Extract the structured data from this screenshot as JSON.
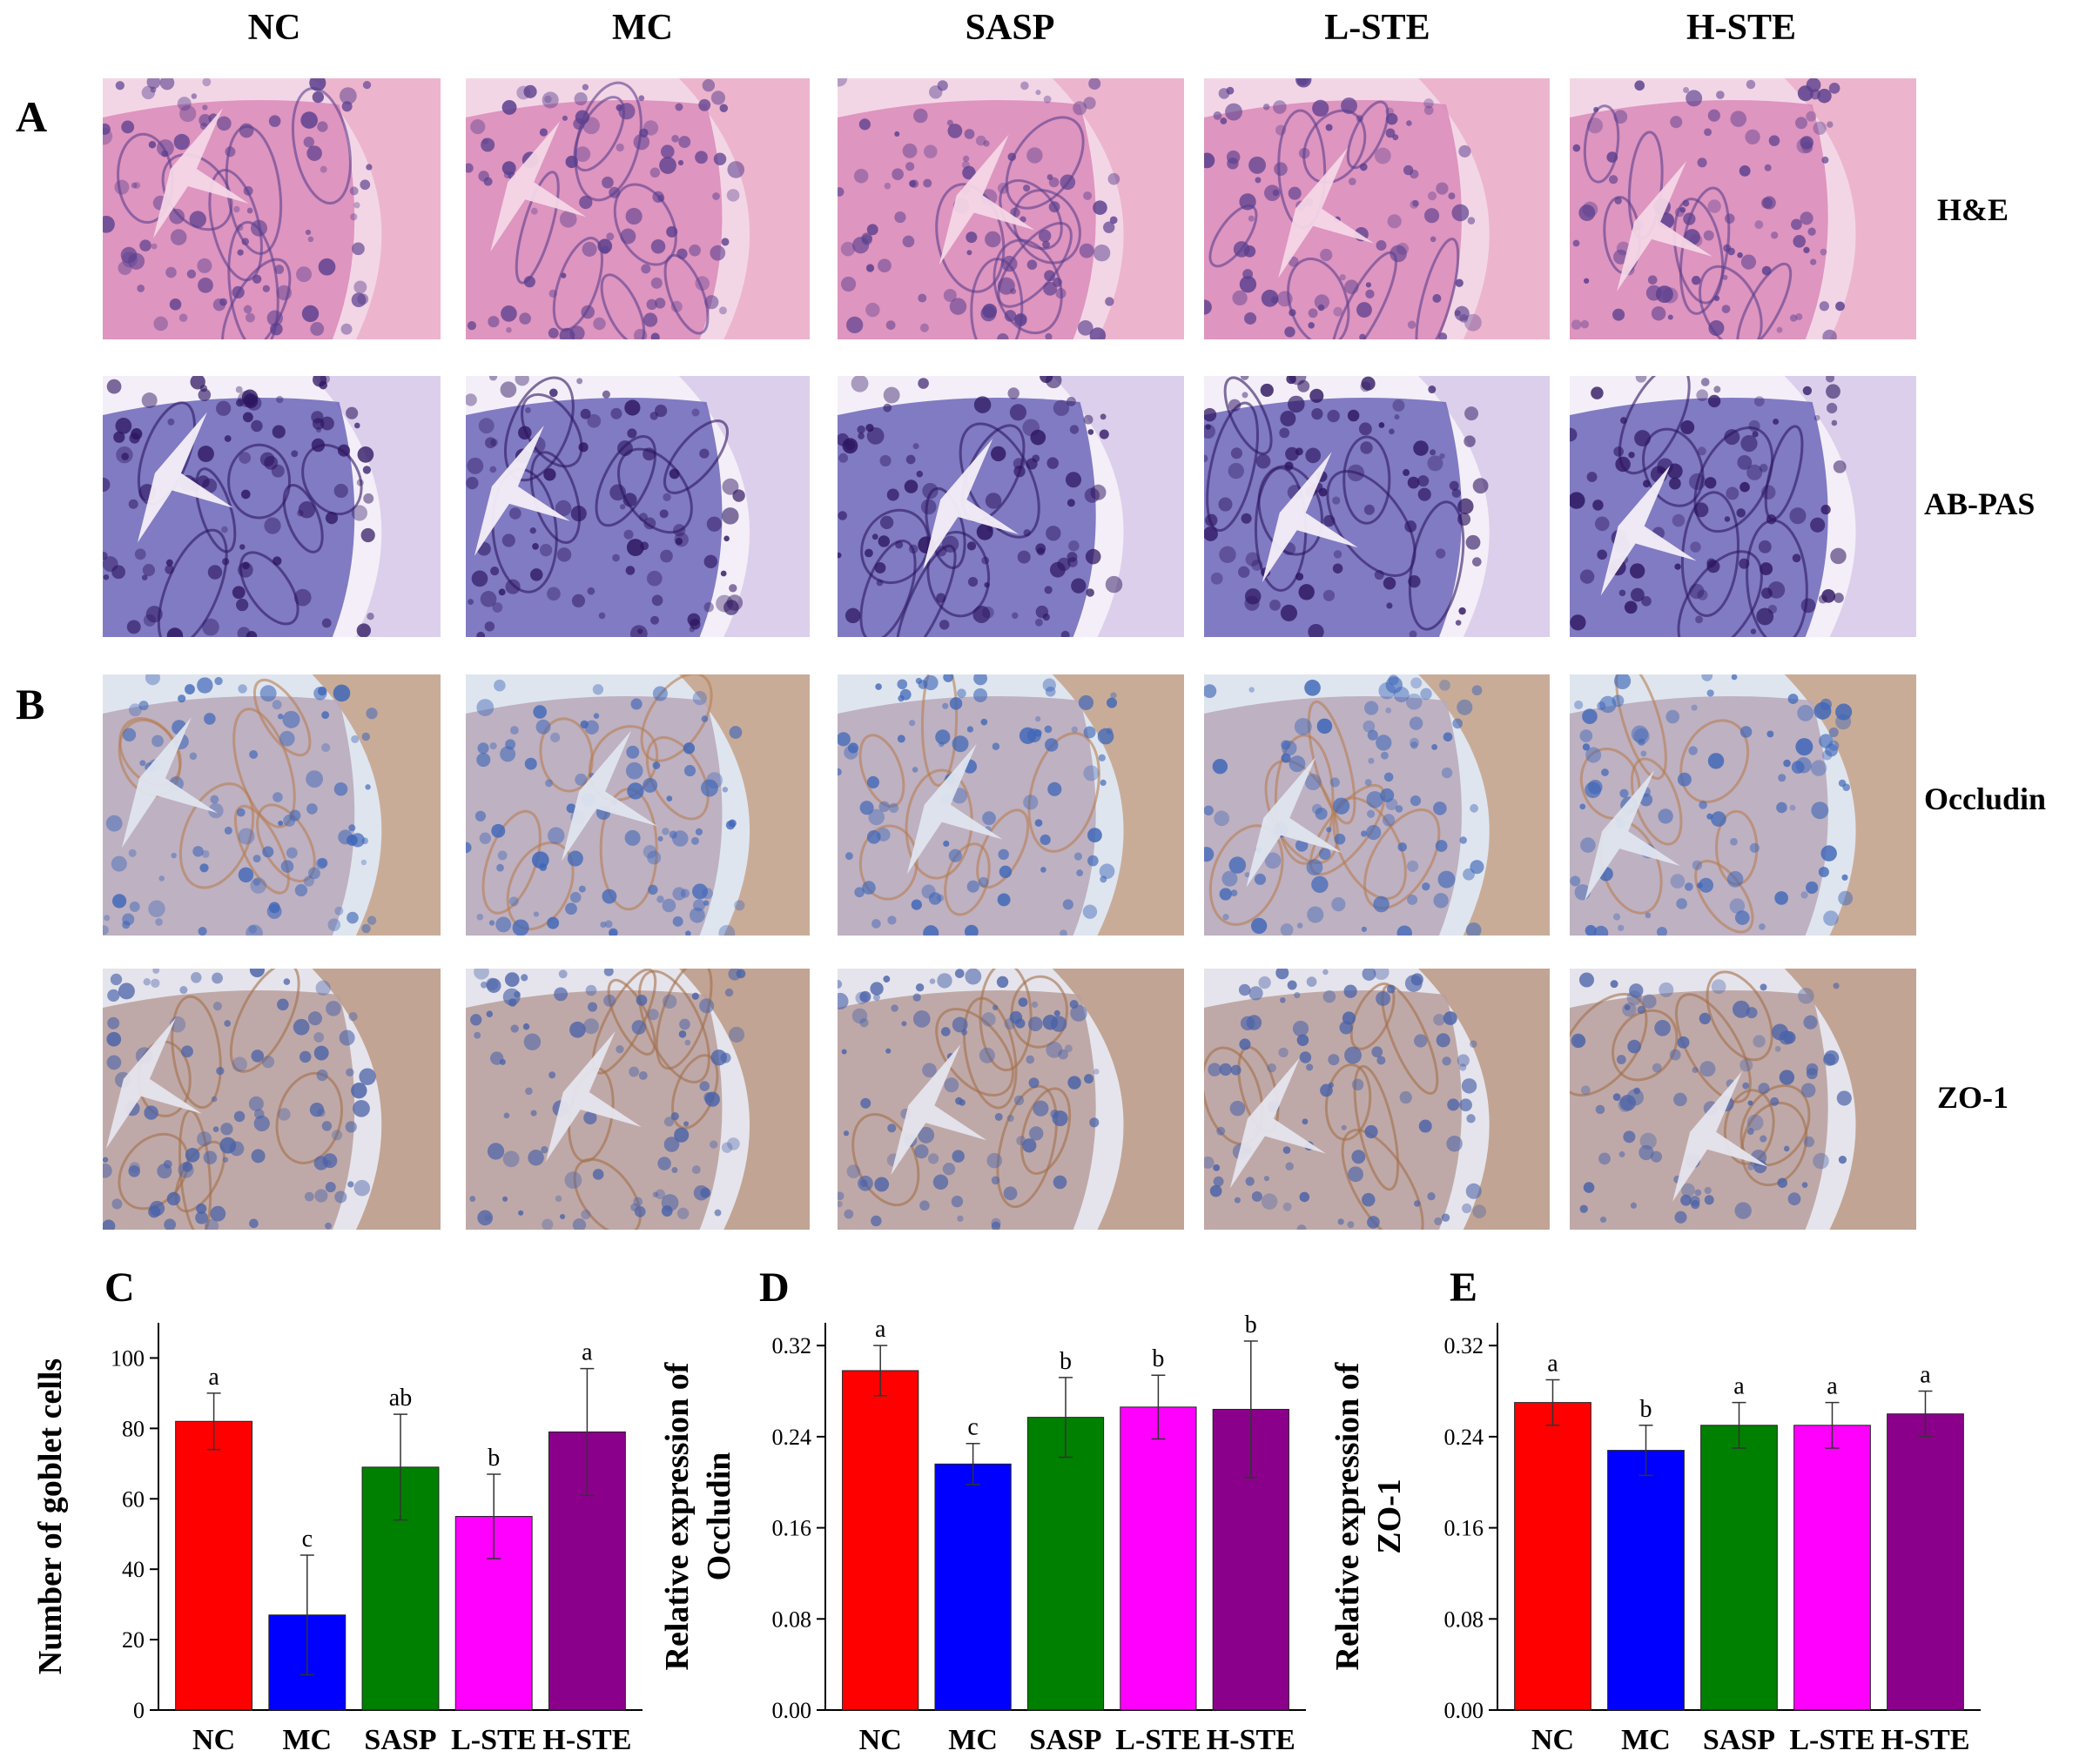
{
  "figure": {
    "groups": [
      "NC",
      "MC",
      "SASP",
      "L-STE",
      "H-STE"
    ],
    "panel_letters": {
      "A": "A",
      "B": "B"
    },
    "stains": {
      "he": "H&E",
      "abpas": "AB-PAS",
      "occludin": "Occludin",
      "zo1": "ZO-1"
    },
    "stain_colors": {
      "he": {
        "bg": "#f3d6e6",
        "tissue": "#d98ab7",
        "nuclei": "#5a3f8e",
        "muscle": "#e59ab8"
      },
      "abpas": {
        "bg": "#f4eef8",
        "tissue": "#6b66b8",
        "nuclei": "#2d1560",
        "muscle": "#c9b6e0"
      },
      "occludin": {
        "bg": "#dfe5ee",
        "tissue": "#b8a8b8",
        "nuclei": "#3e66b8",
        "brown": "#b77d52"
      },
      "zo1": {
        "bg": "#e5e4ec",
        "tissue": "#b99f9c",
        "nuclei": "#4a62a8",
        "brown": "#a46f4a"
      }
    }
  },
  "chart_data": [
    {
      "type": "bar",
      "panel": "C",
      "categories": [
        "NC",
        "MC",
        "SASP",
        "L-STE",
        "H-STE"
      ],
      "values": [
        82,
        27,
        69,
        55,
        79
      ],
      "errors": [
        8,
        17,
        15,
        12,
        18
      ],
      "letters": [
        "a",
        "c",
        "ab",
        "b",
        "a"
      ],
      "colors": [
        "#ff0000",
        "#0000ff",
        "#008000",
        "#ff00ff",
        "#8b008b"
      ],
      "ylabel": "Number of goblet cells",
      "ylim": [
        0,
        110
      ],
      "yticks": [
        0,
        20,
        40,
        60,
        80,
        100
      ],
      "ytick_labels": [
        "0",
        "20",
        "40",
        "60",
        "80",
        "100"
      ]
    },
    {
      "type": "bar",
      "panel": "D",
      "categories": [
        "NC",
        "MC",
        "SASP",
        "L-STE",
        "H-STE"
      ],
      "values": [
        0.298,
        0.216,
        0.257,
        0.266,
        0.264
      ],
      "errors": [
        0.022,
        0.018,
        0.035,
        0.028,
        0.06
      ],
      "letters": [
        "a",
        "c",
        "b",
        "b",
        "b"
      ],
      "colors": [
        "#ff0000",
        "#0000ff",
        "#008000",
        "#ff00ff",
        "#8b008b"
      ],
      "ylabel_lines": [
        "Relative expression of",
        "Occludin"
      ],
      "ylim": [
        0,
        0.34
      ],
      "yticks": [
        0,
        0.08,
        0.16,
        0.24,
        0.32
      ],
      "ytick_labels": [
        "0.00",
        "0.08",
        "0.16",
        "0.24",
        "0.32"
      ]
    },
    {
      "type": "bar",
      "panel": "E",
      "categories": [
        "NC",
        "MC",
        "SASP",
        "L-STE",
        "H-STE"
      ],
      "values": [
        0.27,
        0.228,
        0.25,
        0.25,
        0.26
      ],
      "errors": [
        0.02,
        0.022,
        0.02,
        0.02,
        0.02
      ],
      "letters": [
        "a",
        "b",
        "a",
        "a",
        "a"
      ],
      "colors": [
        "#ff0000",
        "#0000ff",
        "#008000",
        "#ff00ff",
        "#8b008b"
      ],
      "ylabel_lines": [
        "Relative expression of",
        "ZO-1"
      ],
      "ylim": [
        0,
        0.34
      ],
      "yticks": [
        0,
        0.08,
        0.16,
        0.24,
        0.32
      ],
      "ytick_labels": [
        "0.00",
        "0.08",
        "0.16",
        "0.24",
        "0.32"
      ]
    }
  ]
}
